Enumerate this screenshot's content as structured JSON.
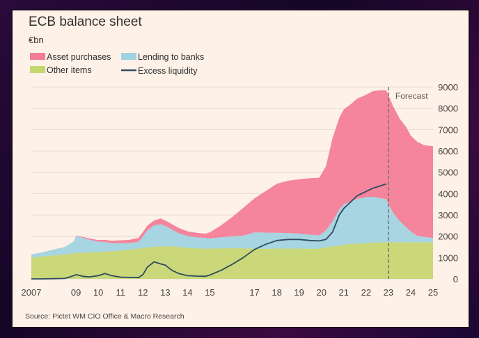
{
  "chart_data": {
    "type": "area",
    "title": "ECB balance sheet",
    "unit": "€bn",
    "source": "Source: Pictet WM CIO Office & Macro Research",
    "annotation": "Forecast",
    "forecast_start": 2023.0,
    "xlim": [
      2007,
      2025
    ],
    "ylim": [
      0,
      9000
    ],
    "x_ticks": [
      {
        "value": 2007,
        "label": "2007"
      },
      {
        "value": 2009,
        "label": "09"
      },
      {
        "value": 2010,
        "label": "10"
      },
      {
        "value": 2011,
        "label": "11"
      },
      {
        "value": 2012,
        "label": "12"
      },
      {
        "value": 2013,
        "label": "13"
      },
      {
        "value": 2014,
        "label": "14"
      },
      {
        "value": 2015,
        "label": "15"
      },
      {
        "value": 2017,
        "label": "17"
      },
      {
        "value": 2018,
        "label": "18"
      },
      {
        "value": 2019,
        "label": "19"
      },
      {
        "value": 2020,
        "label": "20"
      },
      {
        "value": 2021,
        "label": "21"
      },
      {
        "value": 2022,
        "label": "22"
      },
      {
        "value": 2023,
        "label": "23"
      },
      {
        "value": 2024,
        "label": "24"
      },
      {
        "value": 2025,
        "label": "25"
      }
    ],
    "y_ticks": [
      0,
      1000,
      2000,
      3000,
      4000,
      5000,
      6000,
      7000,
      8000,
      9000
    ],
    "y_tick_labels": [
      "0",
      "1000",
      "2000",
      "3000",
      "4000",
      "5000",
      "6000",
      "7000",
      "8000",
      "9000"
    ],
    "legend": [
      {
        "key": "asset",
        "label": "Asset purchases",
        "kind": "area"
      },
      {
        "key": "lending",
        "label": "Lending to banks",
        "kind": "area"
      },
      {
        "key": "other",
        "label": "Other items",
        "kind": "area"
      },
      {
        "key": "excess",
        "label": "Excess liquidity",
        "kind": "line"
      }
    ],
    "colors": {
      "asset": "#f47b96",
      "lending": "#9fd3df",
      "other": "#c5d66f",
      "excess": "#2f4a5e",
      "grid": "#e5dbd3",
      "forecast_line": "#777777"
    },
    "x": [
      2007.0,
      2007.5,
      2008.0,
      2008.5,
      2008.9,
      2009.0,
      2009.3,
      2009.6,
      2010.0,
      2010.3,
      2010.6,
      2011.0,
      2011.4,
      2011.8,
      2012.0,
      2012.2,
      2012.5,
      2012.8,
      2013.0,
      2013.3,
      2013.6,
      2014.0,
      2014.4,
      2014.8,
      2015.0,
      2015.5,
      2016.0,
      2016.5,
      2017.0,
      2017.5,
      2018.0,
      2018.5,
      2019.0,
      2019.5,
      2019.9,
      2020.2,
      2020.5,
      2020.8,
      2021.0,
      2021.3,
      2021.6,
      2022.0,
      2022.3,
      2022.6,
      2022.9,
      2023.0,
      2023.2,
      2023.5,
      2023.8,
      2024.0,
      2024.3,
      2024.6,
      2025.0
    ],
    "series": [
      {
        "key": "other",
        "name": "Other items",
        "values": [
          1000,
          1050,
          1100,
          1150,
          1200,
          1220,
          1230,
          1240,
          1260,
          1280,
          1300,
          1330,
          1380,
          1420,
          1450,
          1480,
          1500,
          1520,
          1530,
          1520,
          1500,
          1460,
          1430,
          1420,
          1420,
          1430,
          1440,
          1430,
          1420,
          1410,
          1420,
          1420,
          1420,
          1410,
          1420,
          1480,
          1520,
          1560,
          1600,
          1630,
          1650,
          1680,
          1700,
          1710,
          1720,
          1720,
          1720,
          1720,
          1720,
          1720,
          1720,
          1720,
          1720
        ]
      },
      {
        "key": "lending",
        "name": "Lending to banks",
        "values": [
          150,
          200,
          280,
          350,
          550,
          780,
          700,
          600,
          480,
          450,
          380,
          350,
          300,
          320,
          550,
          800,
          1000,
          1050,
          950,
          800,
          650,
          550,
          520,
          500,
          480,
          520,
          560,
          600,
          760,
          760,
          740,
          730,
          700,
          660,
          620,
          800,
          1200,
          1700,
          1900,
          2000,
          2100,
          2150,
          2150,
          2080,
          2020,
          1800,
          1400,
          1000,
          700,
          500,
          300,
          250,
          200
        ]
      },
      {
        "key": "asset",
        "name": "Asset purchases",
        "values": [
          0,
          0,
          0,
          0,
          0,
          20,
          40,
          60,
          80,
          100,
          110,
          130,
          150,
          180,
          200,
          220,
          240,
          260,
          260,
          250,
          240,
          220,
          210,
          200,
          280,
          560,
          900,
          1300,
          1600,
          1950,
          2300,
          2450,
          2550,
          2650,
          2700,
          3000,
          3900,
          4300,
          4450,
          4550,
          4700,
          4800,
          4950,
          5050,
          5100,
          5100,
          5000,
          4800,
          4700,
          4500,
          4400,
          4300,
          4300
        ]
      },
      {
        "key": "excess",
        "name": "Excess liquidity",
        "values": [
          0,
          0,
          10,
          20,
          150,
          200,
          120,
          90,
          150,
          250,
          150,
          80,
          70,
          60,
          200,
          550,
          800,
          700,
          650,
          400,
          250,
          150,
          130,
          120,
          180,
          400,
          680,
          1000,
          1380,
          1620,
          1800,
          1850,
          1850,
          1800,
          1780,
          1850,
          2200,
          3000,
          3300,
          3600,
          3900,
          4100,
          4250,
          4350,
          4450,
          null,
          null,
          null,
          null,
          null,
          null,
          null,
          null
        ]
      }
    ]
  }
}
